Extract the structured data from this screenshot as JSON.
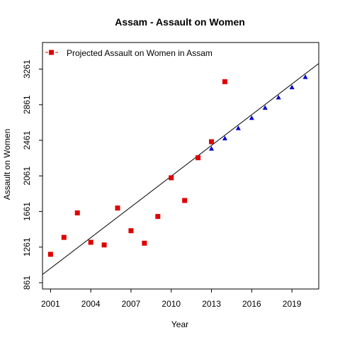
{
  "chart_data": {
    "type": "scatter",
    "title": "Assam  -  Assault on Women",
    "xlabel": "Year",
    "ylabel": "Assault on Women",
    "xlim": [
      2000.4,
      2021.0
    ],
    "ylim": [
      790,
      3560
    ],
    "x_ticks": [
      "2001",
      "2004",
      "2007",
      "2010",
      "2013",
      "2016",
      "2019"
    ],
    "y_ticks": [
      "861",
      "1261",
      "1661",
      "2061",
      "2461",
      "2861",
      "3261"
    ],
    "legend": {
      "position": "top-left",
      "entries": [
        "Projected  Assault on Women  in  Assam"
      ]
    },
    "grid": false,
    "series": [
      {
        "marker": "square",
        "color": "#dd0000",
        "points": [
          {
            "x": 2001,
            "y": 1180
          },
          {
            "x": 2002,
            "y": 1370
          },
          {
            "x": 2003,
            "y": 1645
          },
          {
            "x": 2004,
            "y": 1315
          },
          {
            "x": 2005,
            "y": 1285
          },
          {
            "x": 2006,
            "y": 1700
          },
          {
            "x": 2007,
            "y": 1445
          },
          {
            "x": 2008,
            "y": 1305
          },
          {
            "x": 2009,
            "y": 1605
          },
          {
            "x": 2010,
            "y": 2040
          },
          {
            "x": 2011,
            "y": 1785
          },
          {
            "x": 2012,
            "y": 2265
          },
          {
            "x": 2013,
            "y": 2445
          },
          {
            "x": 2014,
            "y": 3120
          }
        ]
      },
      {
        "marker": "triangle",
        "color": "#0000cc",
        "points": [
          {
            "x": 2013,
            "y": 2365
          },
          {
            "x": 2014,
            "y": 2480
          },
          {
            "x": 2015,
            "y": 2595
          },
          {
            "x": 2016,
            "y": 2710
          },
          {
            "x": 2017,
            "y": 2825
          },
          {
            "x": 2018,
            "y": 2940
          },
          {
            "x": 2019,
            "y": 3055
          },
          {
            "x": 2020,
            "y": 3170
          }
        ]
      }
    ],
    "trend_line": {
      "color": "#000000",
      "points": [
        {
          "x": 2000.4,
          "y": 953
        },
        {
          "x": 2021.0,
          "y": 3324
        }
      ]
    }
  }
}
